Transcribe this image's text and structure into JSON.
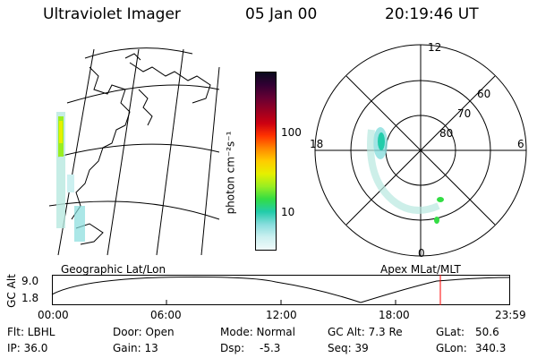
{
  "header": {
    "title": "Ultraviolet Imager",
    "date": "05 Jan 00",
    "time": "20:19:46 UT"
  },
  "left_panel": {
    "caption": "Geographic Lat/Lon"
  },
  "colorbar": {
    "unit_label": "photon cm⁻²s⁻¹",
    "ticks": [
      "100",
      "10"
    ],
    "colors": [
      "#0a0a1e",
      "#330033",
      "#660033",
      "#990022",
      "#cc0011",
      "#ff3300",
      "#ff8800",
      "#ffcc00",
      "#e6f000",
      "#99ee22",
      "#33dd44",
      "#22ccaa",
      "#88dddd",
      "#ccf0f0",
      "#f0fafa"
    ]
  },
  "polar_panel": {
    "caption": "Apex MLat/MLT",
    "mlt_labels": {
      "top": "12",
      "left": "18",
      "right": "6",
      "bottom": "0"
    },
    "lat_labels": [
      "60",
      "70",
      "80"
    ]
  },
  "altitude_plot": {
    "ylabel": "GC Alt",
    "yticks": [
      "9.0",
      "1.8"
    ],
    "xticks": [
      "00:00",
      "06:00",
      "12:00",
      "18:00",
      "23:59"
    ],
    "marker_color": "#ff0000"
  },
  "footer": {
    "row1": {
      "flt": "Flt: LBHL",
      "door": "Door: Open",
      "mode": "Mode: Normal",
      "gcalt": "GC Alt: 7.3 Re",
      "glat_label": "GLat:",
      "glat_value": "50.6"
    },
    "row2": {
      "ip": "IP: 36.0",
      "gain": "Gain: 13",
      "dsp_label": "Dsp:",
      "dsp_value": "-5.3",
      "seq": "Seq: 39",
      "glon_label": "GLon:",
      "glon_value": "340.3"
    }
  }
}
